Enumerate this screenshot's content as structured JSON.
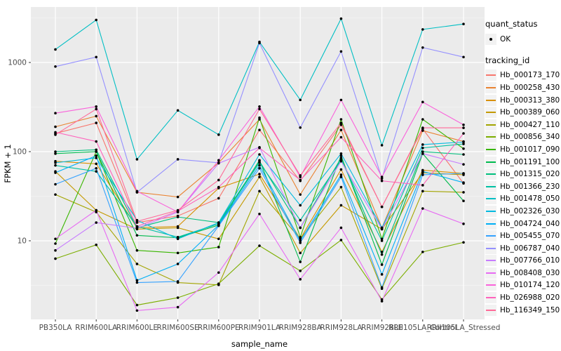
{
  "figure": {
    "background": "#FFFFFF",
    "panel_background": "#EBEBEB",
    "grid_major_color": "#FFFFFF",
    "grid_minor_color": "#F5F5F5",
    "axis_text_color": "#4D4D4D",
    "tick_color": "#333333",
    "point_color": "#000000",
    "legend_key_fill": "#F2F2F2"
  },
  "legend": {
    "quant_title": "quant_status",
    "quant_items": [
      {
        "label": "OK",
        "marker": "point-icon"
      }
    ],
    "tracking_title": "tracking_id"
  },
  "chart_data": {
    "type": "line",
    "title": "",
    "xlabel": "sample_name",
    "ylabel": "FPKM + 1",
    "y_scale": "log10",
    "y_ticks": [
      10,
      100,
      1000
    ],
    "ylim": [
      1.3,
      4200
    ],
    "grid": true,
    "legend_position": "right",
    "marker": "black-point",
    "categories": [
      "PB350LA",
      "RRIM600LA",
      "RRIM600LE",
      "RRIM600SE",
      "RRIM600PE",
      "RRIM901LA",
      "RRIM928BA",
      "RRIM928LA",
      "RRIM928LE",
      "RRII105LA_Control",
      "RRII105LA_Stressed"
    ],
    "series": [
      {
        "name": "Hb_000173_170",
        "color": "#F8766D",
        "values": [
          160,
          210,
          16,
          19,
          30,
          175,
          47,
          200,
          24,
          180,
          44
        ]
      },
      {
        "name": "Hb_000258_430",
        "color": "#EA8331",
        "values": [
          190,
          250,
          35,
          31,
          75,
          230,
          33,
          175,
          14,
          172,
          130
        ]
      },
      {
        "name": "Hb_000313_380",
        "color": "#D89000",
        "values": [
          78,
          73,
          14,
          14.5,
          39,
          56,
          10.5,
          63,
          7.5,
          62,
          57
        ]
      },
      {
        "name": "Hb_000389_060",
        "color": "#C49A00",
        "values": [
          60,
          22,
          13.5,
          14,
          10.5,
          52,
          7.3,
          25,
          13.5,
          58,
          55
        ]
      },
      {
        "name": "Hb_000427_110",
        "color": "#A3A500",
        "values": [
          33,
          21,
          5.5,
          3.4,
          3.2,
          36,
          10.5,
          40,
          2.9,
          36,
          35
        ]
      },
      {
        "name": "Hb_000856_340",
        "color": "#7CAE00",
        "values": [
          6.3,
          9,
          1.9,
          2.3,
          3.3,
          8.8,
          4.6,
          10.2,
          2.2,
          7.5,
          9.6
        ]
      },
      {
        "name": "Hb_001017_090",
        "color": "#39B600",
        "values": [
          9.3,
          100,
          7.8,
          7.3,
          8.5,
          240,
          11,
          230,
          10.5,
          230,
          108
        ]
      },
      {
        "name": "Hb_001191_100",
        "color": "#00BB4E",
        "values": [
          95,
          100,
          11.5,
          10.8,
          15,
          80,
          5.8,
          90,
          5.4,
          95,
          28
        ]
      },
      {
        "name": "Hb_001315_020",
        "color": "#00BF7D",
        "values": [
          100,
          105,
          14,
          18.5,
          16,
          78,
          14,
          85,
          7,
          100,
          93
        ]
      },
      {
        "name": "Hb_001366_230",
        "color": "#00C1A3",
        "values": [
          70,
          60,
          14.5,
          11,
          15.5,
          75,
          17,
          80,
          10,
          110,
          122
        ]
      },
      {
        "name": "Hb_001478_050",
        "color": "#00BFC4",
        "values": [
          1400,
          3000,
          82,
          290,
          155,
          1700,
          380,
          3100,
          118,
          2350,
          2700
        ]
      },
      {
        "name": "Hb_002326_030",
        "color": "#00BAE0",
        "values": [
          75,
          85,
          17,
          10.5,
          16,
          93,
          25,
          95,
          14,
          120,
          128
        ]
      },
      {
        "name": "Hb_004724_040",
        "color": "#00B0F6",
        "values": [
          58,
          90,
          3.6,
          5.5,
          15,
          70,
          10,
          55,
          4.2,
          60,
          45
        ]
      },
      {
        "name": "Hb_005455_070",
        "color": "#35A2FF",
        "values": [
          43,
          65,
          3.4,
          3.5,
          14.7,
          65,
          9.5,
          52,
          3.0,
          55,
          57
        ]
      },
      {
        "name": "Hb_006787_040",
        "color": "#9590FF",
        "values": [
          900,
          1150,
          35,
          82,
          75,
          1650,
          186,
          1330,
          50,
          1470,
          1150
        ]
      },
      {
        "name": "Hb_007766_010",
        "color": "#C77CFF",
        "values": [
          7.8,
          16,
          13.8,
          21,
          74,
          112,
          14,
          78,
          13.5,
          95,
          72
        ]
      },
      {
        "name": "Hb_008408_030",
        "color": "#E76BF3",
        "values": [
          10.5,
          22,
          1.65,
          1.8,
          4.4,
          20,
          3.7,
          14,
          2.1,
          23,
          15.5
        ]
      },
      {
        "name": "Hb_010174_120",
        "color": "#FA62DB",
        "values": [
          270,
          320,
          36,
          21,
          80,
          320,
          52,
          380,
          52,
          360,
          200
        ]
      },
      {
        "name": "Hb_026988_020",
        "color": "#FF62BC",
        "values": [
          165,
          130,
          14.5,
          21.5,
          40,
          110,
          48,
          145,
          47,
          42,
          160
        ]
      },
      {
        "name": "Hb_116349_150",
        "color": "#FF6A98",
        "values": [
          155,
          300,
          16.5,
          22,
          48,
          300,
          54,
          210,
          24,
          185,
          185
        ]
      }
    ]
  }
}
